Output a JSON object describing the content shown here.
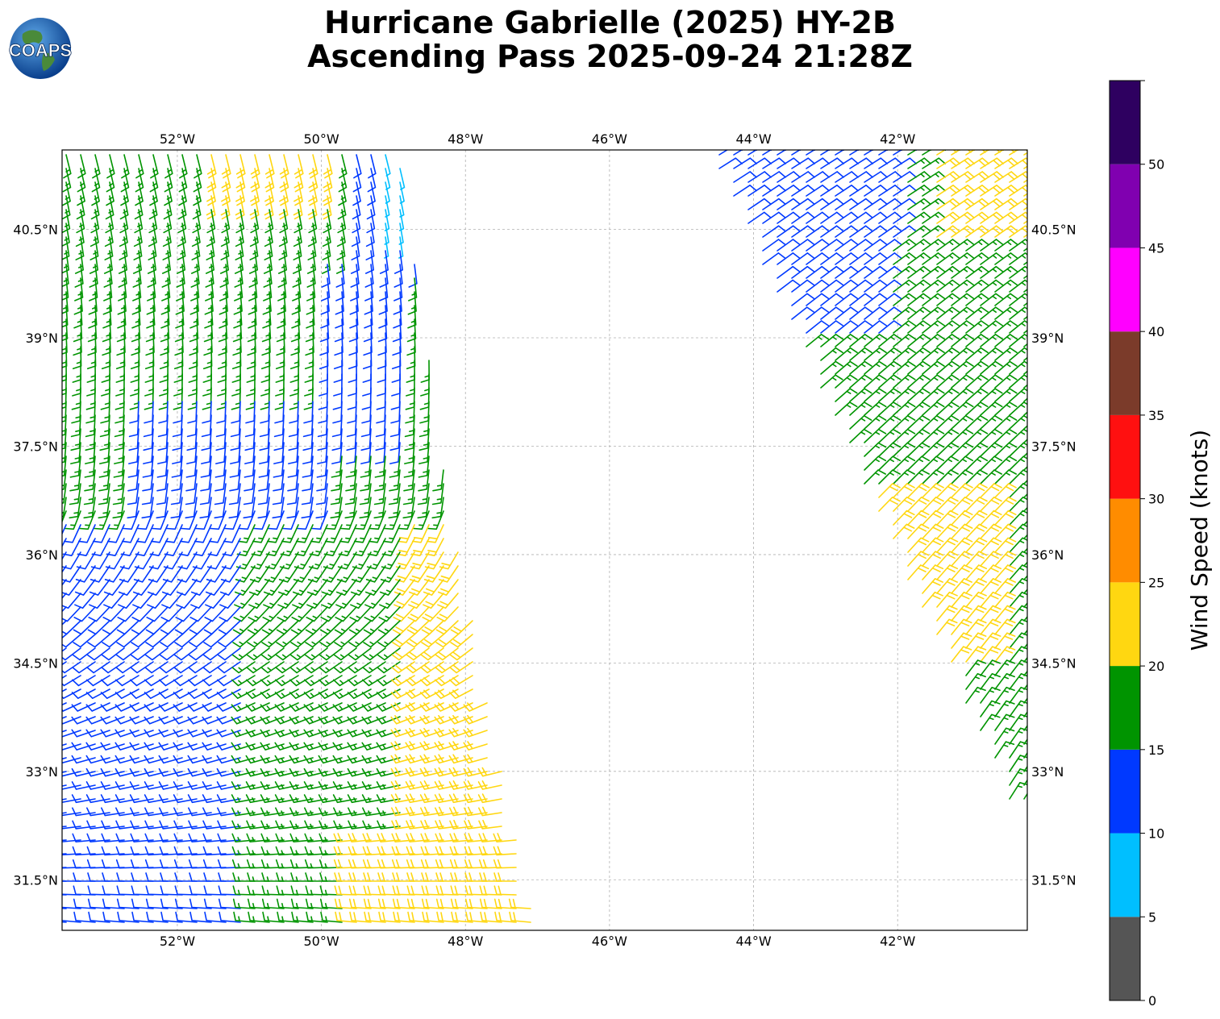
{
  "title": {
    "line1": "Hurricane Gabrielle (2025) HY-2B",
    "line2": "Ascending Pass 2025-09-24 21:28Z"
  },
  "logo": {
    "text": "COAPS"
  },
  "map": {
    "lon_ticks": [
      "52°W",
      "50°W",
      "48°W",
      "46°W",
      "44°W",
      "42°W"
    ],
    "lat_ticks": [
      "40.5°N",
      "39°N",
      "37.5°N",
      "36°N",
      "34.5°N",
      "33°N",
      "31.5°N"
    ],
    "lon_values": [
      -52,
      -50,
      -48,
      -46,
      -44,
      -42
    ],
    "lat_values": [
      40.5,
      39,
      37.5,
      36,
      34.5,
      33,
      31.5
    ],
    "lon_range": [
      -53.6,
      -40.2
    ],
    "lat_range": [
      30.8,
      41.6
    ],
    "gridlines": true
  },
  "colorbar": {
    "label": "Wind Speed (knots)",
    "ticks": [
      "0",
      "5",
      "10",
      "15",
      "20",
      "25",
      "30",
      "35",
      "40",
      "45",
      "50"
    ],
    "bins": [
      {
        "from": 0,
        "to": 5,
        "color": "#555555"
      },
      {
        "from": 5,
        "to": 10,
        "color": "#00bfff"
      },
      {
        "from": 10,
        "to": 15,
        "color": "#0039ff"
      },
      {
        "from": 15,
        "to": 20,
        "color": "#009400"
      },
      {
        "from": 20,
        "to": 25,
        "color": "#ffd711"
      },
      {
        "from": 25,
        "to": 30,
        "color": "#ff8c00"
      },
      {
        "from": 30,
        "to": 35,
        "color": "#ff1010"
      },
      {
        "from": 35,
        "to": 40,
        "color": "#7b3b2a"
      },
      {
        "from": 40,
        "to": 45,
        "color": "#ff00ff"
      },
      {
        "from": 45,
        "to": 50,
        "color": "#8000b0"
      },
      {
        "from": 50,
        "to": 55,
        "color": "#2e0060"
      }
    ]
  }
}
